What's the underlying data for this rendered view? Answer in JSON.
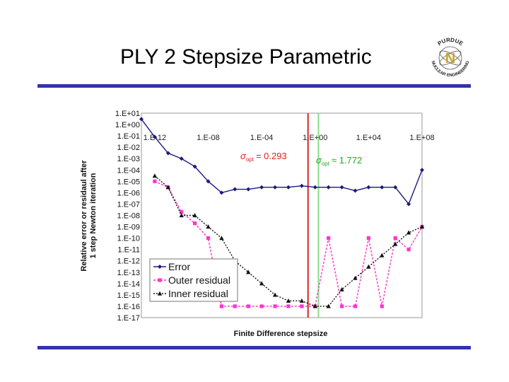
{
  "slide": {
    "title": "PLY 2 Stepsize Parametric",
    "logo": {
      "text_top": "PURDUE",
      "text_bottom": "NUCLEAR ENGINEERING",
      "letter": "N"
    },
    "rule_color": "#3333aa"
  },
  "chart_data": {
    "type": "line",
    "title": "",
    "xlabel": "Finite Difference stepsize",
    "ylabel": "Relative error or residaul after 1 step Newton iteration",
    "x_scale": "log",
    "y_scale": "log",
    "xlim": [
      1e-13,
      100000000.0
    ],
    "ylim": [
      1e-17,
      10
    ],
    "x_tick_values": [
      1e-12,
      1e-08,
      0.0001,
      1,
      10000.0,
      100000000.0
    ],
    "x_tick_labels": [
      "1.E-12",
      "1.E-08",
      "1.E-04",
      "1.E+00",
      "1.E+04",
      "1.E+08"
    ],
    "y_tick_labels": [
      "1.E+01",
      "1.E+00",
      "1.E-01",
      "1.E-02",
      "1.E-03",
      "1.E-04",
      "1.E-05",
      "1.E-06",
      "1.E-07",
      "1.E-08",
      "1.E-09",
      "1.E-10",
      "1.E-11",
      "1.E-12",
      "1.E-13",
      "1.E-14",
      "1.E-15",
      "1.E-16",
      "1.E-17"
    ],
    "grid": false,
    "legend_position": "bottom-left",
    "series": [
      {
        "name": "Error",
        "color": "#1a1a80",
        "marker": "diamond",
        "x": [
          1e-13,
          1e-12,
          1e-11,
          1e-10,
          1e-09,
          1e-08,
          1e-07,
          1e-06,
          1e-05,
          0.0001,
          0.001,
          0.01,
          0.1,
          1,
          10.0,
          100.0,
          1000.0,
          10000.0,
          100000.0,
          1000000.0,
          10000000.0,
          100000000.0
        ],
        "y": [
          3,
          0.08,
          0.003,
          0.001,
          0.0002,
          1e-05,
          1e-06,
          2e-06,
          2e-06,
          3e-06,
          3e-06,
          3e-06,
          4e-06,
          3e-06,
          3e-06,
          3e-06,
          1.5e-06,
          3e-06,
          3e-06,
          3e-06,
          1e-07,
          0.0001
        ]
      },
      {
        "name": "Outer residual",
        "color": "#ff33cc",
        "marker": "square",
        "x": [
          1e-12,
          1e-11,
          1e-10,
          1e-09,
          1e-08,
          1e-07,
          1e-06,
          1e-05,
          0.0001,
          0.001,
          0.01,
          0.1,
          1,
          10.0,
          100.0,
          1000.0,
          10000.0,
          100000.0,
          1000000.0,
          10000000.0,
          100000000.0
        ],
        "y": [
          1e-05,
          3e-06,
          2e-08,
          2e-09,
          1e-10,
          1e-16,
          1e-16,
          1e-16,
          1e-16,
          1e-16,
          1e-16,
          1e-16,
          1e-16,
          1e-10,
          1e-16,
          1e-16,
          1e-10,
          1e-16,
          1e-10,
          1e-11,
          1e-09
        ]
      },
      {
        "name": "Inner residual",
        "color": "#111111",
        "marker": "triangle",
        "x": [
          1e-12,
          1e-11,
          1e-10,
          1e-09,
          1e-08,
          1e-07,
          1e-06,
          1e-05,
          0.0001,
          0.001,
          0.01,
          0.1,
          1,
          10.0,
          100.0,
          1000.0,
          10000.0,
          100000.0,
          1000000.0,
          10000000.0,
          100000000.0
        ],
        "y": [
          3e-05,
          3e-06,
          1e-08,
          1e-08,
          1e-09,
          1e-10,
          1e-12,
          1e-13,
          1e-14,
          1e-15,
          3e-16,
          3e-16,
          1e-16,
          1e-16,
          3e-15,
          3e-14,
          3e-13,
          3e-12,
          3e-11,
          3e-10,
          1e-09
        ]
      }
    ],
    "annotations": [
      {
        "symbol": "σ",
        "subscript": "opt",
        "text": "= 0.293",
        "color": "#e02020"
      },
      {
        "symbol": "σ",
        "subscript": "opt",
        "text": "≈ 1.772",
        "color": "#22aa22"
      }
    ],
    "reference_lines": [
      {
        "x": 0.293,
        "color": "#e02020"
      },
      {
        "x": 1.772,
        "color": "#88dd88"
      }
    ]
  }
}
